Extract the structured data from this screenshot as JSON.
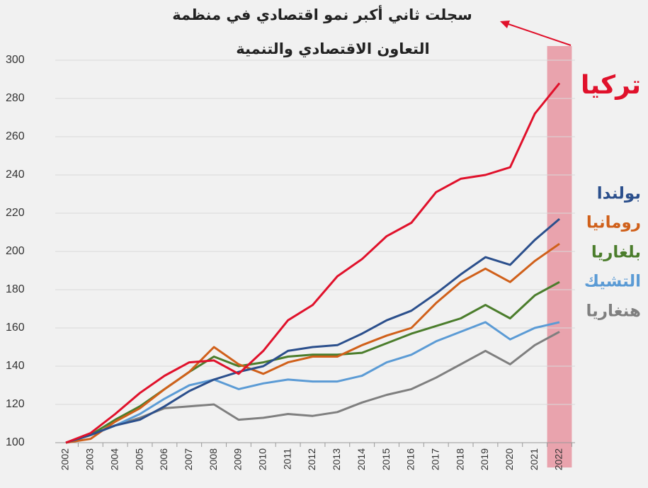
{
  "chart_data": {
    "type": "line",
    "annotation": [
      "سجلت ثاني أكبر نمو اقتصادي في منظمة",
      "التعاون الاقتصادي والتنمية"
    ],
    "categories": [
      "2002",
      "2003",
      "2004",
      "2005",
      "2006",
      "2007",
      "2008",
      "2009",
      "2010",
      "2011",
      "2012",
      "2013",
      "2014",
      "2015",
      "2016",
      "2017",
      "2018",
      "2019",
      "2020",
      "2021",
      "2022"
    ],
    "ylim": [
      100,
      300
    ],
    "yticks": [
      100,
      120,
      140,
      160,
      180,
      200,
      220,
      240,
      260,
      280,
      300
    ],
    "grid": true,
    "highlight": {
      "category": "2022",
      "color": "#e9a3ad"
    },
    "series": [
      {
        "name": "تركيا",
        "color": "#e0112b",
        "values": [
          100,
          105,
          115,
          126,
          135,
          142,
          143,
          136,
          148,
          164,
          172,
          187,
          196,
          208,
          215,
          231,
          238,
          240,
          244,
          272,
          288
        ]
      },
      {
        "name": "بولندا",
        "color": "#2b4f8c",
        "values": [
          100,
          104,
          109,
          112,
          119,
          127,
          133,
          137,
          140,
          148,
          150,
          151,
          157,
          164,
          169,
          178,
          188,
          197,
          193,
          206,
          217
        ]
      },
      {
        "name": "رومانيا",
        "color": "#d0601a",
        "values": [
          100,
          102,
          111,
          118,
          128,
          137,
          150,
          141,
          136,
          142,
          145,
          145,
          151,
          156,
          160,
          173,
          184,
          191,
          184,
          195,
          204
        ]
      },
      {
        "name": "بلغاريا",
        "color": "#4b7d2c",
        "values": [
          100,
          104,
          112,
          119,
          128,
          137,
          145,
          140,
          142,
          145,
          146,
          146,
          147,
          152,
          157,
          161,
          165,
          172,
          165,
          177,
          184
        ]
      },
      {
        "name": "التشيك",
        "color": "#5b9bd5",
        "values": [
          100,
          104,
          109,
          115,
          123,
          130,
          133,
          128,
          131,
          133,
          132,
          132,
          135,
          142,
          146,
          153,
          158,
          163,
          154,
          160,
          163
        ]
      },
      {
        "name": "هنغاريا",
        "color": "#7f7f7f",
        "values": [
          100,
          104,
          109,
          113,
          118,
          119,
          120,
          112,
          113,
          115,
          114,
          116,
          121,
          125,
          128,
          134,
          141,
          148,
          141,
          151,
          158
        ]
      }
    ]
  }
}
